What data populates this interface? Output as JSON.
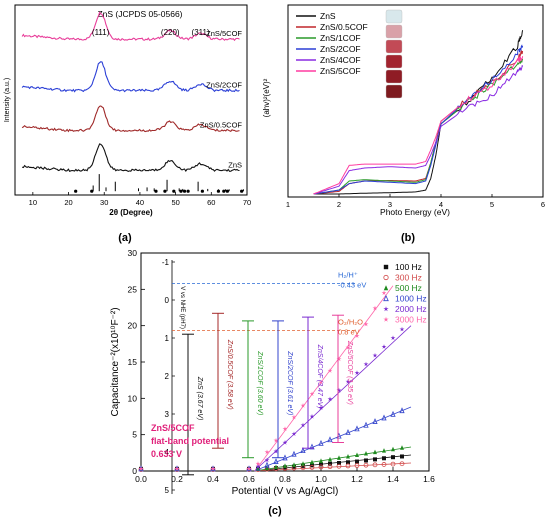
{
  "panels": {
    "a": {
      "label": "(a)",
      "chart_data": {
        "type": "line",
        "title": "ZnS (JCPDS 05-0566)",
        "xlabel": "2θ (Degree)",
        "ylabel": "Intensity (a.u.)",
        "xlim": [
          5,
          70
        ],
        "xticks": [
          "10",
          "20",
          "30",
          "40",
          "50",
          "60",
          "70"
        ],
        "peak_labels": [
          {
            "x": 29,
            "text": "(111)"
          },
          {
            "x": 48.5,
            "text": "(220)"
          },
          {
            "x": 57,
            "text": "(311)"
          }
        ],
        "series": [
          {
            "name": "ZnS/5COF",
            "color": "#e83e9a",
            "baseline": 0.82,
            "peaks": [
              [
                29,
                0.14,
                2.0
              ],
              [
                48.5,
                0.045,
                2.2
              ],
              [
                57,
                0.03,
                2.2
              ]
            ]
          },
          {
            "name": "ZnS/2COF",
            "color": "#2b3fd6",
            "baseline": 0.55,
            "peaks": [
              [
                29,
                0.15,
                2.0
              ],
              [
                48.5,
                0.05,
                2.2
              ],
              [
                57,
                0.035,
                2.2
              ]
            ]
          },
          {
            "name": "ZnS/0.5COF",
            "color": "#a02a2a",
            "baseline": 0.34,
            "peaks": [
              [
                29,
                0.13,
                2.0
              ],
              [
                48.5,
                0.045,
                2.2
              ],
              [
                57,
                0.03,
                2.2
              ]
            ]
          },
          {
            "name": "ZnS",
            "color": "#111111",
            "baseline": 0.13,
            "peaks": [
              [
                29,
                0.14,
                2.0
              ],
              [
                48.5,
                0.05,
                2.2
              ],
              [
                57,
                0.035,
                2.2
              ]
            ]
          }
        ],
        "reference_sticks": [
          [
            28.6,
            0.09
          ],
          [
            33.1,
            0.05
          ],
          [
            47.6,
            0.06
          ],
          [
            56.3,
            0.05
          ],
          [
            26.9,
            0.03
          ],
          [
            30.5,
            0.02
          ],
          [
            39.6,
            0.015
          ],
          [
            42,
            0.02
          ],
          [
            44,
            0.015
          ],
          [
            51,
            0.015
          ],
          [
            52,
            0.012
          ],
          [
            59,
            0.012
          ],
          [
            62,
            0.01
          ],
          [
            64,
            0.01
          ],
          [
            65,
            0.01
          ],
          [
            69,
            0.01
          ]
        ],
        "reference_dots": [
          22,
          26.5,
          44.5,
          47,
          49.5,
          51.5,
          52.5,
          53.5,
          57.5,
          62,
          63.5,
          64.5,
          68.5
        ]
      }
    },
    "b": {
      "label": "(b)",
      "chart_data": {
        "type": "line",
        "xlabel": "Photo Energy (eV)",
        "ylabel": "(ahv)²(eV)²",
        "xlim": [
          1,
          6
        ],
        "xticks": [
          "1",
          "2",
          "3",
          "4",
          "5",
          "6"
        ],
        "legend": {
          "position": "top-left",
          "entries": [
            "ZnS",
            "ZnS/0.5COF",
            "ZnS/1COF",
            "ZnS/2COF",
            "ZnS/4COF",
            "ZnS/5COF"
          ]
        },
        "series": [
          {
            "name": "ZnS",
            "color": "#111111",
            "x": [
              1.5,
              2.0,
              2.5,
              3.0,
              3.5,
              3.7,
              3.8,
              3.9,
              4.0,
              4.5,
              5.0,
              5.5,
              5.6
            ],
            "y": [
              0,
              0,
              0.3,
              0.5,
              0.8,
              1.5,
              6,
              15,
              27,
              35,
              45,
              57,
              63
            ]
          },
          {
            "name": "ZnS/0.5COF",
            "color": "#c0262c",
            "x": [
              1.5,
              2.0,
              2.2,
              2.5,
              3.0,
              3.5,
              3.7,
              3.8,
              3.9,
              4.0,
              4.5,
              5.0,
              5.5,
              5.6
            ],
            "y": [
              0,
              1,
              4,
              5,
              5.2,
              5,
              6,
              12,
              20,
              28,
              36,
              43,
              52,
              55
            ]
          },
          {
            "name": "ZnS/1COF",
            "color": "#2a9a2a",
            "x": [
              1.5,
              2.0,
              2.2,
              2.5,
              3.0,
              3.5,
              3.7,
              3.8,
              3.9,
              4.0,
              4.5,
              5.0,
              5.5,
              5.6
            ],
            "y": [
              0,
              1.5,
              5,
              5.5,
              5,
              4.5,
              5.5,
              12,
              20,
              27,
              35,
              42,
              50,
              52
            ]
          },
          {
            "name": "ZnS/2COF",
            "color": "#2b3fd6",
            "x": [
              1.5,
              2.0,
              2.2,
              2.5,
              3.0,
              3.5,
              3.7,
              3.8,
              3.9,
              4.0,
              4.5,
              5.0,
              5.5,
              5.6
            ],
            "y": [
              0,
              1.5,
              4,
              5,
              4.5,
              4,
              5,
              11,
              19,
              27,
              36,
              44,
              54,
              57
            ]
          },
          {
            "name": "ZnS/4COF",
            "color": "#8a2be2",
            "x": [
              1.5,
              2.0,
              2.2,
              2.5,
              3.0,
              3.5,
              3.7,
              3.8,
              3.9,
              4.0,
              4.5,
              5.0,
              5.5,
              5.6
            ],
            "y": [
              0,
              3,
              9,
              10,
              10.5,
              10,
              11,
              15,
              20,
              26,
              33,
              38,
              47,
              49
            ]
          },
          {
            "name": "ZnS/5COF",
            "color": "#ff3ca0",
            "x": [
              1.5,
              2.0,
              2.2,
              2.5,
              3.0,
              3.5,
              3.7,
              3.8,
              3.9,
              4.0,
              4.5,
              5.0,
              5.5,
              5.6
            ],
            "y": [
              0,
              4,
              11,
              11.5,
              11.5,
              11.5,
              12.5,
              17,
              22,
              28,
              36,
              42,
              51,
              53
            ]
          }
        ],
        "ylim": [
          0,
          70
        ],
        "swatch_colors": [
          "#d8e8ec",
          "#d9a1a8",
          "#c24a56",
          "#a2232e",
          "#8f1c25",
          "#7e1a1f"
        ]
      }
    },
    "c": {
      "label": "(c)",
      "chart_data": {
        "type": "scatter",
        "xlabel": "Potential (V vs Ag/AgCl)",
        "ylabel": "Capacitance⁻²(x10¹⁰F⁻²)",
        "xlim": [
          0,
          1.6
        ],
        "ylim": [
          0,
          30
        ],
        "xticks": [
          "0.0",
          "0.2",
          "0.4",
          "0.6",
          "0.8",
          "1.0",
          "1.2",
          "1.4",
          "1.6"
        ],
        "yticks": [
          "0",
          "5",
          "10",
          "15",
          "20",
          "25",
          "30"
        ],
        "flat_band_potential": 0.633,
        "series": [
          {
            "name": "100 Hz",
            "color": "#111111",
            "marker": "square",
            "x": [
              0.0,
              0.2,
              0.4,
              0.6,
              0.65,
              0.7,
              0.75,
              0.8,
              0.85,
              0.9,
              0.95,
              1.0,
              1.05,
              1.1,
              1.15,
              1.2,
              1.25,
              1.3,
              1.35,
              1.4,
              1.45
            ],
            "y": [
              0.3,
              0.3,
              0.3,
              0.3,
              0.3,
              0.35,
              0.4,
              0.5,
              0.6,
              0.7,
              0.8,
              0.9,
              1.0,
              1.1,
              1.2,
              1.3,
              1.45,
              1.6,
              1.75,
              1.9,
              2.0
            ]
          },
          {
            "name": "300 Hz",
            "color": "#d24b4b",
            "marker": "circle-open",
            "x": [
              0.0,
              0.2,
              0.4,
              0.6,
              0.65,
              0.7,
              0.75,
              0.8,
              0.85,
              0.9,
              0.95,
              1.0,
              1.05,
              1.1,
              1.15,
              1.2,
              1.25,
              1.3,
              1.35,
              1.4,
              1.45
            ],
            "y": [
              0.2,
              0.2,
              0.2,
              0.2,
              0.2,
              0.25,
              0.3,
              0.35,
              0.4,
              0.45,
              0.5,
              0.55,
              0.6,
              0.65,
              0.7,
              0.75,
              0.8,
              0.85,
              0.9,
              0.95,
              1.0
            ]
          },
          {
            "name": "500 Hz",
            "color": "#1e8a1e",
            "marker": "triangle",
            "x": [
              0.0,
              0.2,
              0.4,
              0.6,
              0.65,
              0.7,
              0.75,
              0.8,
              0.85,
              0.9,
              0.95,
              1.0,
              1.05,
              1.1,
              1.15,
              1.2,
              1.25,
              1.3,
              1.35,
              1.4,
              1.45
            ],
            "y": [
              0.3,
              0.3,
              0.3,
              0.3,
              0.3,
              0.4,
              0.55,
              0.7,
              0.85,
              1.0,
              1.2,
              1.4,
              1.6,
              1.8,
              2.0,
              2.2,
              2.4,
              2.6,
              2.8,
              3.0,
              3.2
            ]
          },
          {
            "name": "1000 Hz",
            "color": "#3344cc",
            "marker": "triangle-open",
            "x": [
              0.0,
              0.2,
              0.4,
              0.6,
              0.65,
              0.7,
              0.75,
              0.8,
              0.85,
              0.9,
              0.95,
              1.0,
              1.05,
              1.1,
              1.15,
              1.2,
              1.25,
              1.3,
              1.35,
              1.4,
              1.45
            ],
            "y": [
              0.3,
              0.3,
              0.3,
              0.3,
              0.4,
              0.8,
              1.3,
              1.8,
              2.3,
              2.8,
              3.3,
              3.8,
              4.3,
              4.8,
              5.3,
              5.8,
              6.3,
              6.8,
              7.3,
              7.8,
              8.3
            ]
          },
          {
            "name": "2000 Hz",
            "color": "#7a2ad0",
            "marker": "star",
            "x": [
              0.0,
              0.2,
              0.4,
              0.6,
              0.65,
              0.7,
              0.75,
              0.8,
              0.85,
              0.9,
              0.95,
              1.0,
              1.05,
              1.1,
              1.15,
              1.2,
              1.25,
              1.3,
              1.35,
              1.4,
              1.45
            ],
            "y": [
              0.3,
              0.3,
              0.3,
              0.3,
              0.6,
              1.5,
              2.7,
              3.9,
              5.1,
              6.3,
              7.5,
              8.7,
              9.9,
              11.1,
              12.3,
              13.5,
              14.7,
              15.9,
              17.1,
              18.3,
              19.5
            ]
          },
          {
            "name": "3000 Hz",
            "color": "#ff66aa",
            "marker": "star",
            "x": [
              0.0,
              0.2,
              0.4,
              0.6,
              0.65,
              0.7,
              0.75,
              0.8,
              0.85,
              0.9,
              0.95,
              1.0,
              1.05,
              1.1,
              1.15,
              1.2,
              1.25,
              1.3,
              1.35
            ],
            "y": [
              0.3,
              0.3,
              0.3,
              0.3,
              1.0,
              2.6,
              4.2,
              5.8,
              7.4,
              9.0,
              10.6,
              12.2,
              13.8,
              15.4,
              17.0,
              18.6,
              20.2,
              22.4,
              24.5
            ]
          }
        ],
        "fit_lines": [
          {
            "color": "#111111",
            "x": [
              0.63,
              1.5
            ],
            "y": [
              0,
              2.2
            ]
          },
          {
            "color": "#d24b4b",
            "x": [
              0.63,
              1.5
            ],
            "y": [
              0,
              1.1
            ]
          },
          {
            "color": "#1e8a1e",
            "x": [
              0.63,
              1.5
            ],
            "y": [
              0,
              3.3
            ]
          },
          {
            "color": "#3344cc",
            "x": [
              0.63,
              1.5
            ],
            "y": [
              0,
              8.8
            ]
          },
          {
            "color": "#7a2ad0",
            "x": [
              0.63,
              1.5
            ],
            "y": [
              0,
              20
            ]
          },
          {
            "color": "#ff66aa",
            "x": [
              0.633,
              1.4
            ],
            "y": [
              0,
              25.5
            ]
          }
        ],
        "inset": {
          "axis_label": "V vs NHE (pH7)",
          "yticks": [
            "-1",
            "0",
            "1",
            "2",
            "3",
            "4",
            "5"
          ],
          "levels": [
            {
              "text_main": "H₂/H⁺",
              "text_sub": "-0.43 eV",
              "value": -0.43,
              "color": "#2a6ad6"
            },
            {
              "text_main": "O₂/H₂O",
              "text_sub": "0.8 eV",
              "value": 0.8,
              "color": "#e06030"
            }
          ],
          "bars": [
            {
              "label": "ZnS (3.67 eV)",
              "color": "#111111",
              "cb": 0.9,
              "vb": 4.6
            },
            {
              "label": "ZnS/0.5COF (3.58 eV)",
              "color": "#a52a2a",
              "cb": 0.35,
              "vb": 3.9
            },
            {
              "label": "ZnS/1COF (3.60 eV)",
              "color": "#2a9a2a",
              "cb": 0.55,
              "vb": 4.15
            },
            {
              "label": "ZnS/2COF (3.61 eV)",
              "color": "#3344cc",
              "cb": 0.55,
              "vb": 4.15
            },
            {
              "label": "ZnS/4COF (3.47 eV)",
              "color": "#7a2ad0",
              "cb": 0.45,
              "vb": 3.9
            },
            {
              "label": "ZnS/5COF (3.35 eV)",
              "color": "#e83e9a",
              "cb": 0.4,
              "vb": 3.75
            }
          ]
        },
        "annotation": {
          "lines": [
            "ZnS/5COF",
            "flat-band potential",
            "0.633 V"
          ],
          "color": "#e0207a"
        }
      }
    }
  }
}
